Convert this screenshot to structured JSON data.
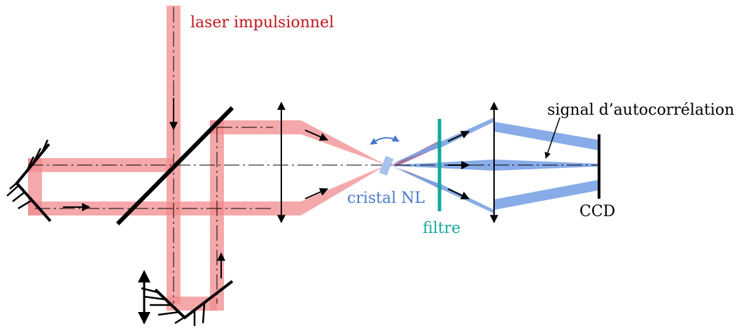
{
  "diagram": {
    "labels": {
      "laser": "laser impulsionnel",
      "signal": "signal d’autocorrélation",
      "crystal": "cristal NL",
      "filter": "filtre",
      "detector": "CCD"
    },
    "colors": {
      "laser_beam": "#f28b8e",
      "laser_text": "#c0141c",
      "signal_beam": "#7ba3e6",
      "crystal": "#a9c1ee",
      "filter": "#13a89e",
      "mix_beam": "#9a5a8a",
      "optics": "#000000"
    },
    "icons": [
      "arrow-icon",
      "double-arrow-icon",
      "curved-double-arrow-icon"
    ]
  }
}
